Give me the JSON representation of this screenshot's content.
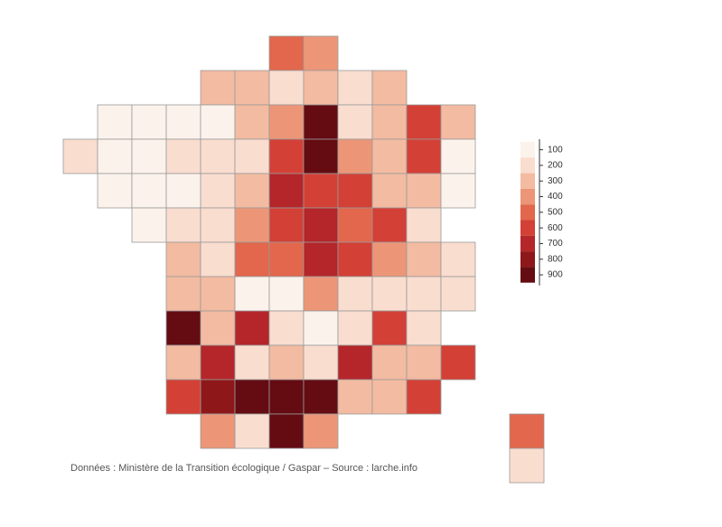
{
  "chart_data": {
    "type": "choropleth",
    "source": "Données : Ministère de la Transition écologique / Gaspar – Source : larche.info",
    "legend_ticks": [
      100,
      200,
      300,
      400,
      500,
      600,
      700,
      800,
      900
    ],
    "legend_colors": [
      "#fcf2ec",
      "#f9ddcf",
      "#f3bba1",
      "#ec9677",
      "#e2674c",
      "#d34036",
      "#b4262a",
      "#8e1719",
      "#640c12"
    ],
    "grid": [
      [
        null,
        null,
        null,
        null,
        null,
        null,
        500,
        400,
        null,
        null,
        null,
        null,
        null,
        null
      ],
      [
        null,
        null,
        null,
        null,
        300,
        300,
        200,
        300,
        200,
        300,
        null,
        null,
        null,
        null
      ],
      [
        null,
        100,
        100,
        100,
        100,
        300,
        400,
        900,
        200,
        300,
        600,
        300,
        null,
        null
      ],
      [
        200,
        100,
        100,
        200,
        200,
        200,
        600,
        900,
        400,
        300,
        600,
        100,
        null,
        null
      ],
      [
        null,
        100,
        100,
        100,
        200,
        300,
        700,
        600,
        600,
        300,
        300,
        100,
        null,
        null
      ],
      [
        null,
        null,
        100,
        200,
        200,
        400,
        600,
        700,
        500,
        600,
        200,
        null,
        null,
        null
      ],
      [
        null,
        null,
        null,
        300,
        200,
        500,
        500,
        700,
        600,
        400,
        300,
        200,
        null,
        null
      ],
      [
        null,
        null,
        null,
        300,
        300,
        100,
        100,
        400,
        200,
        200,
        200,
        200,
        null,
        null
      ],
      [
        null,
        null,
        null,
        900,
        300,
        700,
        200,
        100,
        200,
        600,
        200,
        null,
        null,
        null
      ],
      [
        null,
        null,
        null,
        300,
        700,
        200,
        300,
        200,
        700,
        300,
        300,
        600,
        null,
        null
      ],
      [
        null,
        null,
        null,
        600,
        800,
        900,
        900,
        900,
        300,
        300,
        600,
        null,
        null,
        null
      ],
      [
        null,
        null,
        null,
        null,
        400,
        200,
        900,
        400,
        null,
        null,
        null,
        null,
        null,
        500
      ],
      [
        null,
        null,
        null,
        null,
        null,
        null,
        null,
        null,
        null,
        null,
        null,
        null,
        null,
        200
      ]
    ]
  }
}
